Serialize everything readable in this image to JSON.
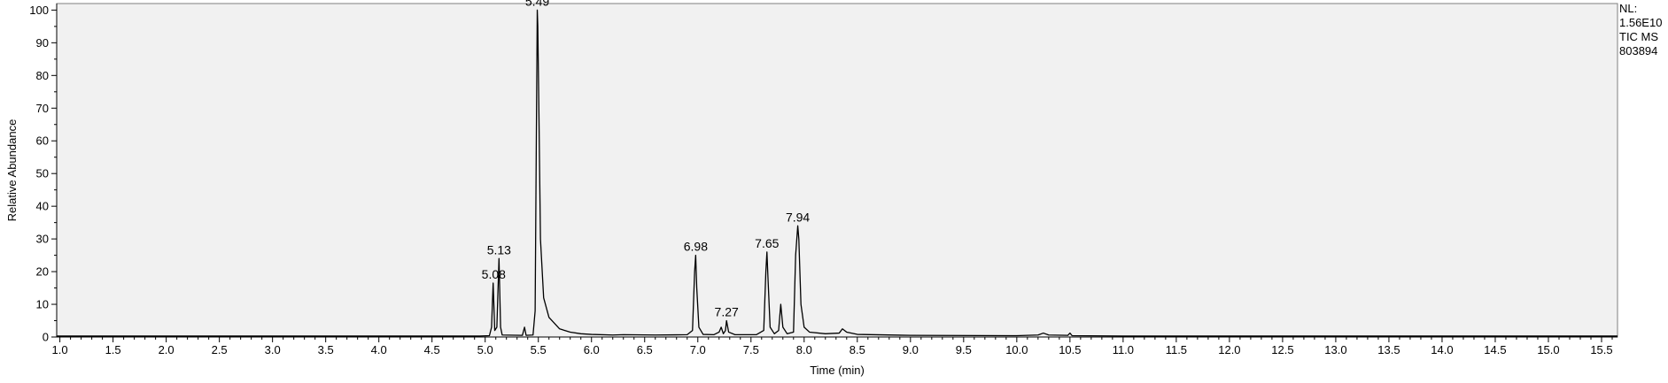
{
  "chart_data": {
    "type": "line",
    "title": "",
    "xlabel": "Time (min)",
    "ylabel": "Relative Abundance",
    "xlim": [
      0.97,
      15.65
    ],
    "ylim": [
      0,
      102
    ],
    "x_ticks": [
      "1.0",
      "1.5",
      "2.0",
      "2.5",
      "3.0",
      "3.5",
      "4.0",
      "4.5",
      "5.0",
      "5.5",
      "6.0",
      "6.5",
      "7.0",
      "7.5",
      "8.0",
      "8.5",
      "9.0",
      "9.5",
      "10.0",
      "10.5",
      "11.0",
      "11.5",
      "12.0",
      "12.5",
      "13.0",
      "13.5",
      "14.0",
      "14.5",
      "15.0",
      "15.5"
    ],
    "y_ticks": [
      "0",
      "10",
      "20",
      "30",
      "40",
      "50",
      "60",
      "70",
      "80",
      "90",
      "100"
    ],
    "grid": false,
    "legend": "none",
    "info": [
      "NL:",
      "1.56E10",
      "TIC  MS",
      "803894"
    ],
    "peak_labels": [
      {
        "x": 5.08,
        "y": 16.5,
        "text": "5.08"
      },
      {
        "x": 5.13,
        "y": 24,
        "text": "5.13"
      },
      {
        "x": 5.49,
        "y": 100,
        "text": "5.49"
      },
      {
        "x": 6.98,
        "y": 25,
        "text": "6.98"
      },
      {
        "x": 7.27,
        "y": 5,
        "text": "7.27"
      },
      {
        "x": 7.65,
        "y": 26,
        "text": "7.65"
      },
      {
        "x": 7.94,
        "y": 34,
        "text": "7.94"
      }
    ],
    "series": [
      {
        "color": "#000000",
        "points": [
          [
            0.97,
            0.3
          ],
          [
            4.95,
            0.3
          ],
          [
            5.04,
            0.4
          ],
          [
            5.06,
            3
          ],
          [
            5.075,
            16.5
          ],
          [
            5.09,
            2
          ],
          [
            5.11,
            3
          ],
          [
            5.13,
            24
          ],
          [
            5.145,
            3
          ],
          [
            5.16,
            0.6
          ],
          [
            5.35,
            0.5
          ],
          [
            5.37,
            3
          ],
          [
            5.385,
            0.5
          ],
          [
            5.45,
            0.6
          ],
          [
            5.47,
            8
          ],
          [
            5.48,
            55
          ],
          [
            5.49,
            100
          ],
          [
            5.495,
            95
          ],
          [
            5.505,
            70
          ],
          [
            5.52,
            30
          ],
          [
            5.55,
            12
          ],
          [
            5.6,
            6
          ],
          [
            5.7,
            2.5
          ],
          [
            5.8,
            1.5
          ],
          [
            5.9,
            1
          ],
          [
            6.0,
            0.8
          ],
          [
            6.2,
            0.6
          ],
          [
            6.3,
            0.7
          ],
          [
            6.6,
            0.6
          ],
          [
            6.9,
            0.7
          ],
          [
            6.95,
            2
          ],
          [
            6.97,
            20
          ],
          [
            6.98,
            25
          ],
          [
            6.99,
            15
          ],
          [
            7.01,
            3
          ],
          [
            7.05,
            0.8
          ],
          [
            7.15,
            0.7
          ],
          [
            7.2,
            1.5
          ],
          [
            7.22,
            3
          ],
          [
            7.24,
            1
          ],
          [
            7.26,
            2
          ],
          [
            7.27,
            5
          ],
          [
            7.29,
            1.5
          ],
          [
            7.35,
            0.7
          ],
          [
            7.55,
            0.7
          ],
          [
            7.62,
            2
          ],
          [
            7.64,
            20
          ],
          [
            7.65,
            26
          ],
          [
            7.66,
            18
          ],
          [
            7.68,
            3
          ],
          [
            7.72,
            1
          ],
          [
            7.76,
            2
          ],
          [
            7.78,
            10
          ],
          [
            7.8,
            3
          ],
          [
            7.84,
            1
          ],
          [
            7.9,
            1.5
          ],
          [
            7.92,
            25
          ],
          [
            7.94,
            34
          ],
          [
            7.95,
            30
          ],
          [
            7.97,
            10
          ],
          [
            8.0,
            3
          ],
          [
            8.05,
            1.5
          ],
          [
            8.2,
            1
          ],
          [
            8.33,
            1.2
          ],
          [
            8.36,
            2.5
          ],
          [
            8.4,
            1.5
          ],
          [
            8.5,
            0.8
          ],
          [
            9.0,
            0.5
          ],
          [
            10.0,
            0.4
          ],
          [
            10.2,
            0.6
          ],
          [
            10.25,
            1.2
          ],
          [
            10.3,
            0.6
          ],
          [
            10.48,
            0.5
          ],
          [
            10.5,
            1.2
          ],
          [
            10.52,
            0.4
          ],
          [
            11.0,
            0.3
          ],
          [
            15.65,
            0.3
          ]
        ]
      }
    ]
  }
}
